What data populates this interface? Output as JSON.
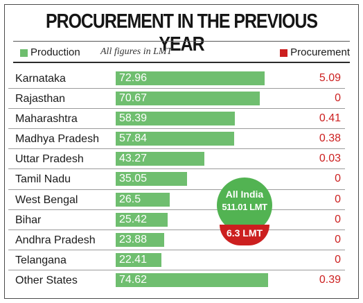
{
  "title": "PROCUREMENT IN THE PREVIOUS YEAR",
  "legend": {
    "production_label": "Production",
    "note": "All figures in LMT",
    "procurement_label": "Procurement"
  },
  "badge": {
    "line1": "All India",
    "line2": "511.01 LMT",
    "procurement": "6.3 LMT"
  },
  "colors": {
    "production": "#6fbe6f",
    "procurement": "#cc1f1f",
    "badge_green": "#52b352"
  },
  "chart_data": {
    "type": "bar",
    "categories": [
      "Karnataka",
      "Rajasthan",
      "Maharashtra",
      "Madhya Pradesh",
      "Uttar Pradesh",
      "Tamil Nadu",
      "West Bengal",
      "Bihar",
      "Andhra Pradesh",
      "Telangana",
      "Other States"
    ],
    "series": [
      {
        "name": "Production",
        "values": [
          72.96,
          70.67,
          58.39,
          57.84,
          43.27,
          35.05,
          26.5,
          25.42,
          23.88,
          22.41,
          74.62
        ],
        "labels": [
          "72.96",
          "70.67",
          "58.39",
          "57.84",
          "43.27",
          "35.05",
          "26.5",
          "25.42",
          "23.88",
          "22.41",
          "74.62"
        ]
      },
      {
        "name": "Procurement",
        "values": [
          5.09,
          0,
          0.41,
          0.38,
          0.03,
          0,
          0,
          0,
          0,
          0,
          0.39
        ],
        "labels": [
          "5.09",
          "0",
          "0.41",
          "0.38",
          "0.03",
          "0",
          "0",
          "0",
          "0",
          "0",
          "0.39"
        ]
      }
    ],
    "title": "PROCUREMENT IN THE PREVIOUS YEAR",
    "xlabel": "",
    "ylabel": "",
    "unit": "LMT",
    "legend": "top"
  }
}
